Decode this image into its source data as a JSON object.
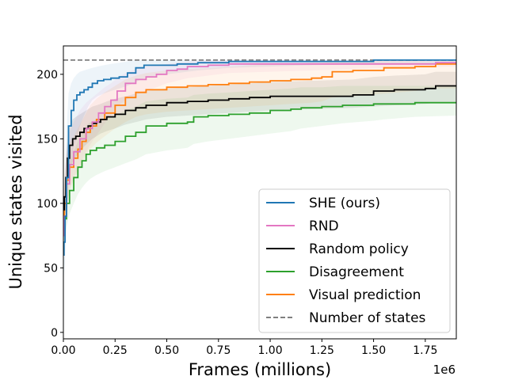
{
  "chart_data": {
    "type": "line",
    "title": "",
    "xlabel": "Frames (millions)",
    "ylabel": "Unique states visited",
    "x_offset_text": "1e6",
    "xlim": [
      0,
      1900000
    ],
    "ylim": [
      -5,
      222
    ],
    "x_ticks": [
      0,
      250000,
      500000,
      750000,
      1000000,
      1250000,
      1500000,
      1750000
    ],
    "x_tick_labels": [
      "0.00",
      "0.25",
      "0.50",
      "0.75",
      "1.00",
      "1.25",
      "1.50",
      "1.75"
    ],
    "y_ticks": [
      0,
      50,
      100,
      150,
      200
    ],
    "y_tick_labels": [
      "0",
      "50",
      "100",
      "150",
      "200"
    ],
    "grid": false,
    "legend_position": "lower-right",
    "reference_line": {
      "name": "Number of states",
      "y": 211,
      "color": "#7f7f7f",
      "dashed": true
    },
    "series": [
      {
        "name": "SHE (ours)",
        "color": "#1f77b4",
        "x": [
          0,
          3000,
          8000,
          15000,
          25000,
          38000,
          50000,
          65000,
          80000,
          100000,
          120000,
          140000,
          165000,
          195000,
          230000,
          270000,
          310000,
          350000,
          390000,
          450000,
          550000,
          650000,
          800000,
          1000000,
          1200000,
          1500000,
          1700000,
          1900000
        ],
        "y": [
          60,
          70,
          90,
          120,
          160,
          172,
          180,
          184,
          186,
          188,
          190,
          193,
          195,
          196,
          197,
          198,
          201,
          205,
          207,
          207,
          208,
          209,
          210,
          210,
          210,
          211,
          211,
          211
        ],
        "band_lo": [
          40,
          45,
          55,
          80,
          110,
          130,
          145,
          150,
          160,
          168,
          175,
          180,
          183,
          185,
          187,
          189,
          191,
          194,
          197,
          199,
          201,
          203,
          205,
          206,
          207,
          208,
          208,
          208
        ],
        "band_hi": [
          80,
          95,
          120,
          155,
          185,
          193,
          197,
          200,
          202,
          203,
          204,
          205,
          206,
          207,
          208,
          209,
          210,
          211,
          211,
          211,
          211,
          211,
          211,
          211,
          211,
          211,
          211,
          211
        ]
      },
      {
        "name": "RND",
        "color": "#e377c2",
        "x": [
          0,
          5000,
          15000,
          30000,
          50000,
          80000,
          110000,
          140000,
          170000,
          200000,
          230000,
          260000,
          300000,
          350000,
          400000,
          450000,
          500000,
          550000,
          600000,
          700000,
          800000,
          1000000,
          1200000,
          1400000,
          1600000,
          1800000,
          1900000
        ],
        "y": [
          75,
          90,
          115,
          130,
          140,
          150,
          158,
          163,
          170,
          175,
          180,
          187,
          193,
          196,
          198,
          200,
          203,
          204,
          206,
          207,
          208,
          208,
          208,
          208,
          208,
          209,
          209
        ],
        "band_lo": [
          50,
          65,
          90,
          110,
          120,
          130,
          140,
          148,
          155,
          162,
          168,
          175,
          180,
          184,
          187,
          190,
          193,
          195,
          197,
          199,
          201,
          202,
          203,
          204,
          205,
          206,
          206
        ],
        "band_hi": [
          100,
          115,
          140,
          155,
          163,
          172,
          178,
          182,
          186,
          190,
          193,
          197,
          201,
          204,
          206,
          207,
          208,
          209,
          210,
          211,
          211,
          211,
          211,
          211,
          211,
          211,
          211
        ]
      },
      {
        "name": "Random policy",
        "color": "#000000",
        "x": [
          0,
          5000,
          12000,
          20000,
          30000,
          45000,
          60000,
          80000,
          100000,
          120000,
          140000,
          160000,
          180000,
          210000,
          250000,
          300000,
          350000,
          400000,
          500000,
          600000,
          700000,
          800000,
          900000,
          1000000,
          1200000,
          1400000,
          1500000,
          1600000,
          1750000,
          1800000,
          1900000
        ],
        "y": [
          95,
          105,
          120,
          135,
          145,
          150,
          152,
          155,
          158,
          160,
          162,
          163,
          165,
          167,
          169,
          172,
          174,
          176,
          178,
          179,
          180,
          181,
          182,
          183,
          183,
          184,
          187,
          188,
          189,
          191,
          191
        ],
        "band_lo": [
          80,
          88,
          100,
          115,
          125,
          132,
          136,
          140,
          144,
          147,
          150,
          152,
          154,
          156,
          158,
          161,
          163,
          165,
          167,
          168,
          169,
          170,
          171,
          172,
          173,
          174,
          175,
          176,
          177,
          178,
          178
        ],
        "band_hi": [
          110,
          120,
          135,
          150,
          160,
          165,
          167,
          169,
          171,
          173,
          175,
          176,
          177,
          179,
          181,
          183,
          185,
          187,
          189,
          190,
          191,
          192,
          193,
          194,
          195,
          196,
          198,
          199,
          200,
          202,
          202
        ]
      },
      {
        "name": "Disagreement",
        "color": "#2ca02c",
        "x": [
          0,
          5000,
          15000,
          30000,
          50000,
          70000,
          90000,
          110000,
          130000,
          160000,
          200000,
          250000,
          300000,
          350000,
          400000,
          500000,
          600000,
          630000,
          700000,
          800000,
          900000,
          1000000,
          1100000,
          1150000,
          1250000,
          1350000,
          1500000,
          1550000,
          1700000,
          1900000
        ],
        "y": [
          78,
          88,
          100,
          110,
          120,
          128,
          133,
          138,
          141,
          143,
          145,
          148,
          152,
          155,
          160,
          162,
          163,
          167,
          168,
          169,
          170,
          172,
          173,
          174,
          175,
          176,
          177,
          177,
          178,
          178
        ],
        "band_lo": [
          60,
          70,
          82,
          92,
          100,
          107,
          112,
          116,
          119,
          122,
          125,
          128,
          131,
          134,
          138,
          141,
          143,
          146,
          148,
          150,
          152,
          154,
          156,
          158,
          160,
          162,
          164,
          165,
          167,
          168
        ],
        "band_hi": [
          96,
          106,
          118,
          128,
          140,
          148,
          154,
          160,
          163,
          165,
          166,
          168,
          172,
          175,
          179,
          181,
          182,
          184,
          185,
          186,
          187,
          188,
          189,
          190,
          190,
          191,
          191,
          191,
          191,
          191
        ]
      },
      {
        "name": "Visual prediction",
        "color": "#ff7f0e",
        "x": [
          0,
          5000,
          15000,
          30000,
          50000,
          70000,
          90000,
          110000,
          130000,
          160000,
          200000,
          250000,
          300000,
          350000,
          400000,
          500000,
          600000,
          700000,
          800000,
          900000,
          1000000,
          1100000,
          1200000,
          1250000,
          1300000,
          1400000,
          1550000,
          1700000,
          1800000,
          1900000
        ],
        "y": [
          82,
          100,
          118,
          128,
          135,
          142,
          148,
          155,
          160,
          165,
          170,
          176,
          182,
          186,
          188,
          190,
          191,
          192,
          193,
          194,
          195,
          196,
          197,
          198,
          202,
          203,
          205,
          206,
          208,
          208
        ],
        "band_lo": [
          65,
          82,
          100,
          110,
          118,
          125,
          131,
          137,
          142,
          147,
          152,
          158,
          163,
          167,
          169,
          171,
          172,
          173,
          174,
          175,
          176,
          177,
          178,
          179,
          182,
          183,
          185,
          187,
          189,
          189
        ],
        "band_hi": [
          100,
          118,
          136,
          146,
          152,
          158,
          164,
          170,
          176,
          181,
          186,
          191,
          196,
          199,
          201,
          203,
          204,
          205,
          206,
          207,
          208,
          208,
          209,
          209,
          210,
          210,
          211,
          211,
          211,
          211
        ]
      }
    ]
  }
}
